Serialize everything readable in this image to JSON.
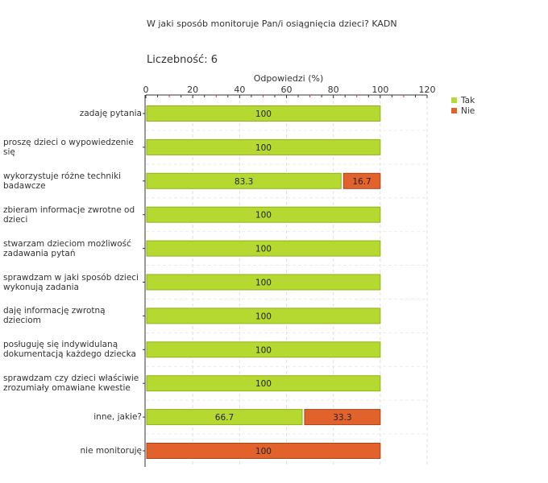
{
  "header": {
    "title": "W jaki sposób monitoruje Pan/i osiągnięcia dzieci?  KADN",
    "count_label": "Liczebność:",
    "count_value": "6"
  },
  "colors": {
    "tak": "#b5d931",
    "nie": "#e2622c"
  },
  "chart_data": {
    "type": "bar",
    "orientation": "horizontal",
    "stacked": true,
    "xlabel": "Odpowiedzi (%)",
    "xlim": [
      0,
      120
    ],
    "xticks": [
      0,
      20,
      40,
      60,
      80,
      100,
      120
    ],
    "grid": true,
    "legend_position": "top-right",
    "categories": [
      "zadaję pytania",
      "proszę dzieci o wypowiedzenie się",
      "wykorzystuje różne techniki badawcze",
      "zbieram informacje zwrotne od dzieci",
      "stwarzam dzieciom możliwość zadawania pytań",
      "sprawdzam w jaki sposób dzieci wykonują zadania",
      "daję informację zwrotną dzieciom",
      "posługuję się indywidulaną dokumentacją każdego dziecka",
      "sprawdzam czy dzieci właściwie zrozumiały omawiane kwestie",
      "inne, jakie?",
      "nie monitoruję"
    ],
    "series": [
      {
        "name": "Tak",
        "values": [
          100,
          100,
          83.3,
          100,
          100,
          100,
          100,
          100,
          100,
          66.7,
          0
        ]
      },
      {
        "name": "Nie",
        "values": [
          0,
          0,
          16.7,
          0,
          0,
          0,
          0,
          0,
          0,
          33.3,
          100
        ]
      }
    ]
  }
}
